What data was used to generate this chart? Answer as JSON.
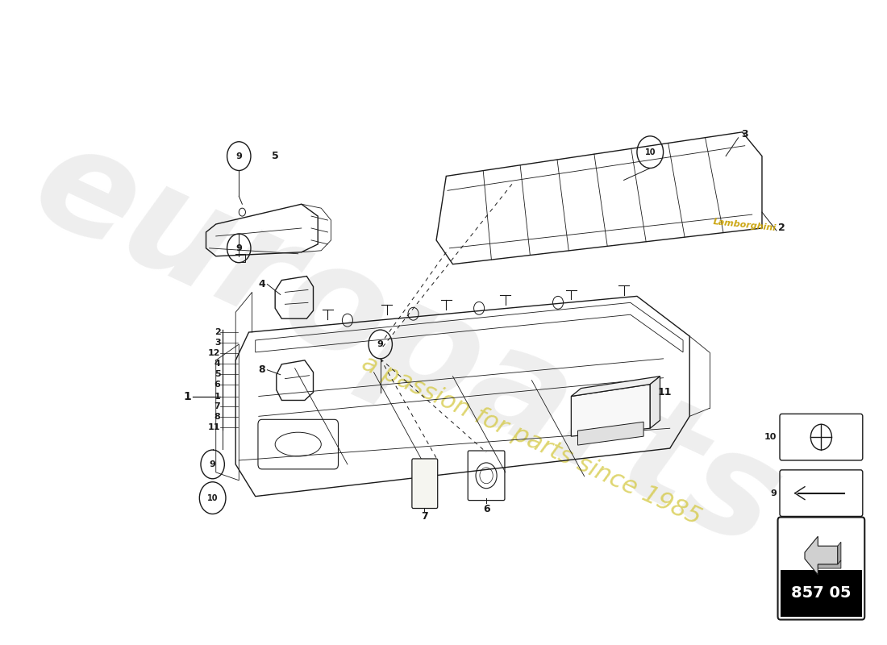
{
  "bg_color": "#ffffff",
  "watermark1": "europarts",
  "watermark2": "a passion for parts since 1985",
  "wm1_color": "#d0d0d0",
  "wm2_color": "#d4c840",
  "lamborghini_color": "#c8a000",
  "part_number": "857 05",
  "line_color": "#1a1a1a",
  "label_fontsize": 9,
  "circle_label_fontsize": 8,
  "fig_w": 11.0,
  "fig_h": 8.0,
  "dpi": 100
}
